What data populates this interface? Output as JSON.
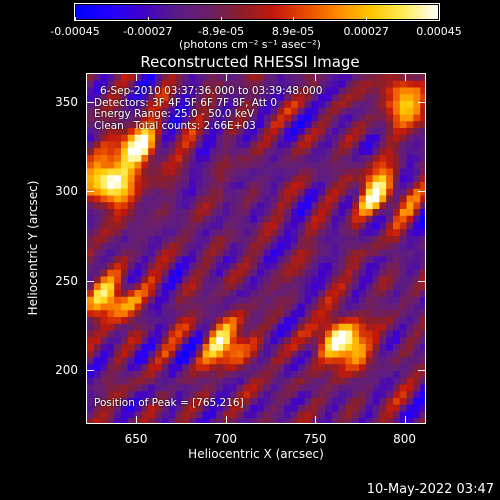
{
  "colorbar": {
    "tick_labels": [
      "-0.00045",
      "-0.00027",
      "-8.9e-05",
      "8.9e-05",
      "0.00027",
      "0.00045"
    ],
    "tick_values": [
      -0.00045,
      -0.00027,
      -8.9e-05,
      8.9e-05,
      0.00027,
      0.00045
    ],
    "range": [
      -0.00045,
      0.00045
    ],
    "unit_label": "(photons cm⁻² s⁻¹ asec⁻²)",
    "colors": [
      "#0000ff",
      "#2200ff",
      "#4000cc",
      "#5a1a8a",
      "#6a1f6a",
      "#8a1f2a",
      "#c2180c",
      "#e84a00",
      "#ff8c00",
      "#ffc800",
      "#ffee60",
      "#ffffff"
    ]
  },
  "title": "Reconstructed RHESSI Image",
  "info": {
    "time_range": "6-Sep-2010 03:37:36.000 to 03:39:48.000",
    "detectors": "Detectors: 3F 4F 5F 6F 7F 8F, Att 0",
    "energy": "Energy Range: 25.0 - 50.0 keV",
    "clean": "Clean   Total counts: 2.66E+03"
  },
  "peak_label": "Position of Peak = [765,216]",
  "timestamp": "10-May-2022 03:47",
  "chart_data": {
    "type": "heatmap",
    "title": "Reconstructed RHESSI Image",
    "xlabel": "Heliocentric X (arcsec)",
    "ylabel": "Heliocentric Y (arcsec)",
    "xlim": [
      622,
      812
    ],
    "ylim": [
      170,
      366
    ],
    "x_ticks": [
      650,
      700,
      750,
      800
    ],
    "y_ticks": [
      200,
      250,
      300,
      350
    ],
    "peak": [
      765,
      216
    ],
    "value_range": [
      -0.00045,
      0.00045
    ],
    "bright_sources": [
      {
        "x": 635,
        "y": 305,
        "level": 1.0
      },
      {
        "x": 650,
        "y": 325,
        "level": 0.8
      },
      {
        "x": 765,
        "y": 216,
        "level": 1.0
      },
      {
        "x": 635,
        "y": 240,
        "level": 0.75
      },
      {
        "x": 700,
        "y": 215,
        "level": 0.7
      },
      {
        "x": 785,
        "y": 300,
        "level": 0.7
      },
      {
        "x": 800,
        "y": 350,
        "level": 0.7
      }
    ]
  }
}
